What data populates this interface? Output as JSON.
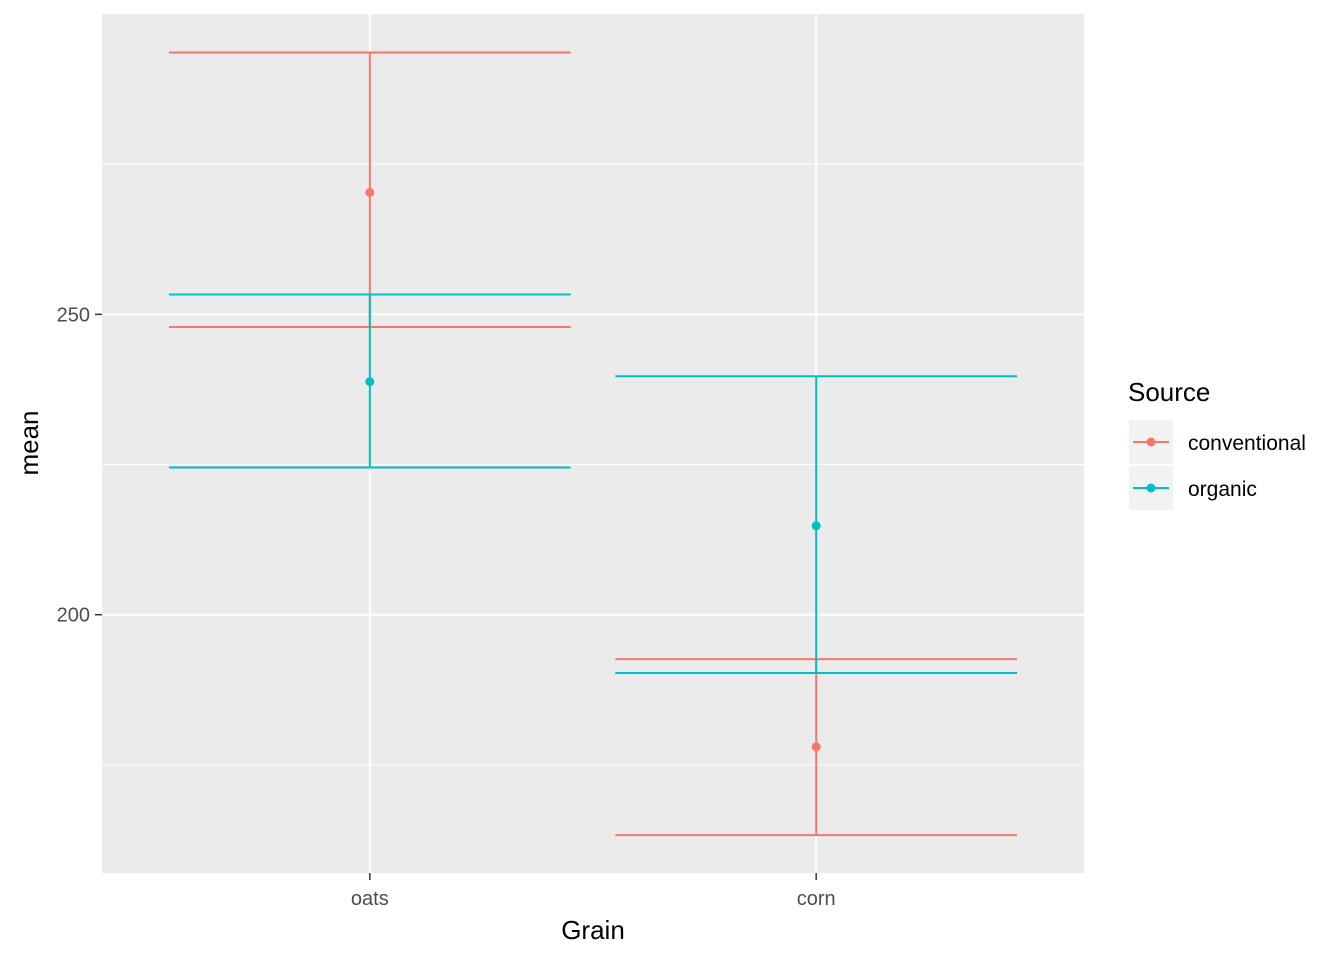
{
  "chart_data": {
    "type": "errorbar",
    "categories": [
      "oats",
      "corn"
    ],
    "xlabel": "Grain",
    "ylabel": "mean",
    "ylim": [
      157,
      300
    ],
    "y_ticks": [
      200,
      250
    ],
    "y_minor_ticks": [
      175,
      225,
      275
    ],
    "grid": true,
    "legend": {
      "title": "Source",
      "placement": "right"
    },
    "series": [
      {
        "name": "conventional",
        "color": "#F8766D",
        "values": [
          270.3,
          178.0
        ],
        "lower": [
          247.9,
          163.3
        ],
        "upper": [
          293.6,
          192.6
        ]
      },
      {
        "name": "organic",
        "color": "#00BFC4",
        "values": [
          238.8,
          214.8
        ],
        "lower": [
          224.5,
          190.3
        ],
        "upper": [
          253.3,
          239.7
        ]
      }
    ]
  }
}
